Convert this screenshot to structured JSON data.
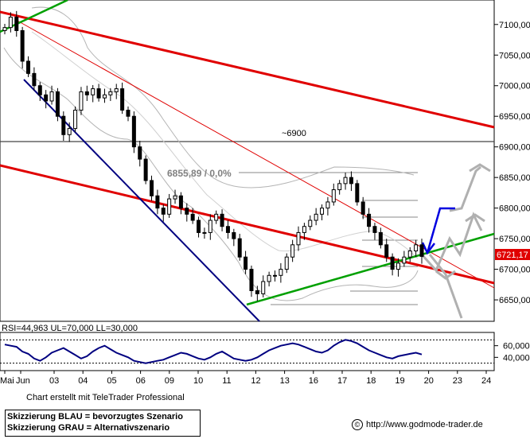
{
  "chart_data": {
    "type": "candlestick",
    "instrument_last_price": "6721,17",
    "y_ticks": [
      "7100,00",
      "7050,00",
      "7000,00",
      "6950,00",
      "6900,00",
      "6850,00",
      "6800,00",
      "6750,00",
      "6700,00",
      "6650,00"
    ],
    "y_range": [
      6615,
      7140
    ],
    "x_ticks": [
      "Mai",
      "Jun",
      "03",
      "04",
      "05",
      "06",
      "09",
      "10",
      "11",
      "12",
      "13",
      "16",
      "17",
      "18",
      "19",
      "20",
      "23",
      "24"
    ],
    "annotations": {
      "level_6900": "~6900",
      "fib_label": "6855,89 / 0,0%"
    },
    "closes": [
      7095,
      7112,
      7090,
      7040,
      7020,
      7000,
      6985,
      6975,
      6990,
      6950,
      6920,
      6930,
      6960,
      6990,
      6985,
      6995,
      6980,
      6985,
      6990,
      6995,
      6960,
      6950,
      6900,
      6880,
      6845,
      6820,
      6800,
      6790,
      6815,
      6820,
      6800,
      6790,
      6780,
      6760,
      6760,
      6780,
      6790,
      6770,
      6760,
      6750,
      6720,
      6700,
      6665,
      6660,
      6680,
      6690,
      6690,
      6700,
      6720,
      6740,
      6760,
      6770,
      6780,
      6790,
      6800,
      6810,
      6830,
      6840,
      6850,
      6840,
      6810,
      6790,
      6770,
      6760,
      6740,
      6720,
      6700,
      6710,
      6720,
      6730,
      6740,
      6721
    ],
    "indicator": {
      "name": "RSI",
      "label": "RSI=44,963 UL=70,000 LL=30,000",
      "ticks": [
        "60,000",
        "40,000"
      ],
      "range": [
        20,
        80
      ],
      "upper": 70,
      "lower": 30,
      "values": [
        62,
        60,
        58,
        50,
        46,
        38,
        34,
        40,
        48,
        52,
        56,
        50,
        44,
        38,
        42,
        50,
        56,
        60,
        54,
        48,
        44,
        40,
        34,
        32,
        30,
        32,
        34,
        36,
        40,
        44,
        48,
        46,
        42,
        38,
        36,
        40,
        46,
        50,
        44,
        38,
        36,
        34,
        36,
        40,
        46,
        52,
        56,
        60,
        62,
        64,
        62,
        58,
        54,
        50,
        48,
        52,
        60,
        66,
        70,
        68,
        64,
        58,
        52,
        48,
        44,
        40,
        38,
        42,
        44,
        46,
        48,
        44.96
      ]
    }
  },
  "footer": {
    "credit": "Chart erstellt mit TeleTrader Professional",
    "legend_blue": "Skizzierung BLAU = bevorzugtes Szenario",
    "legend_grey": "Skizzierung GRAU = Alternativszenario",
    "source": "http://www.godmode-trader.de"
  }
}
